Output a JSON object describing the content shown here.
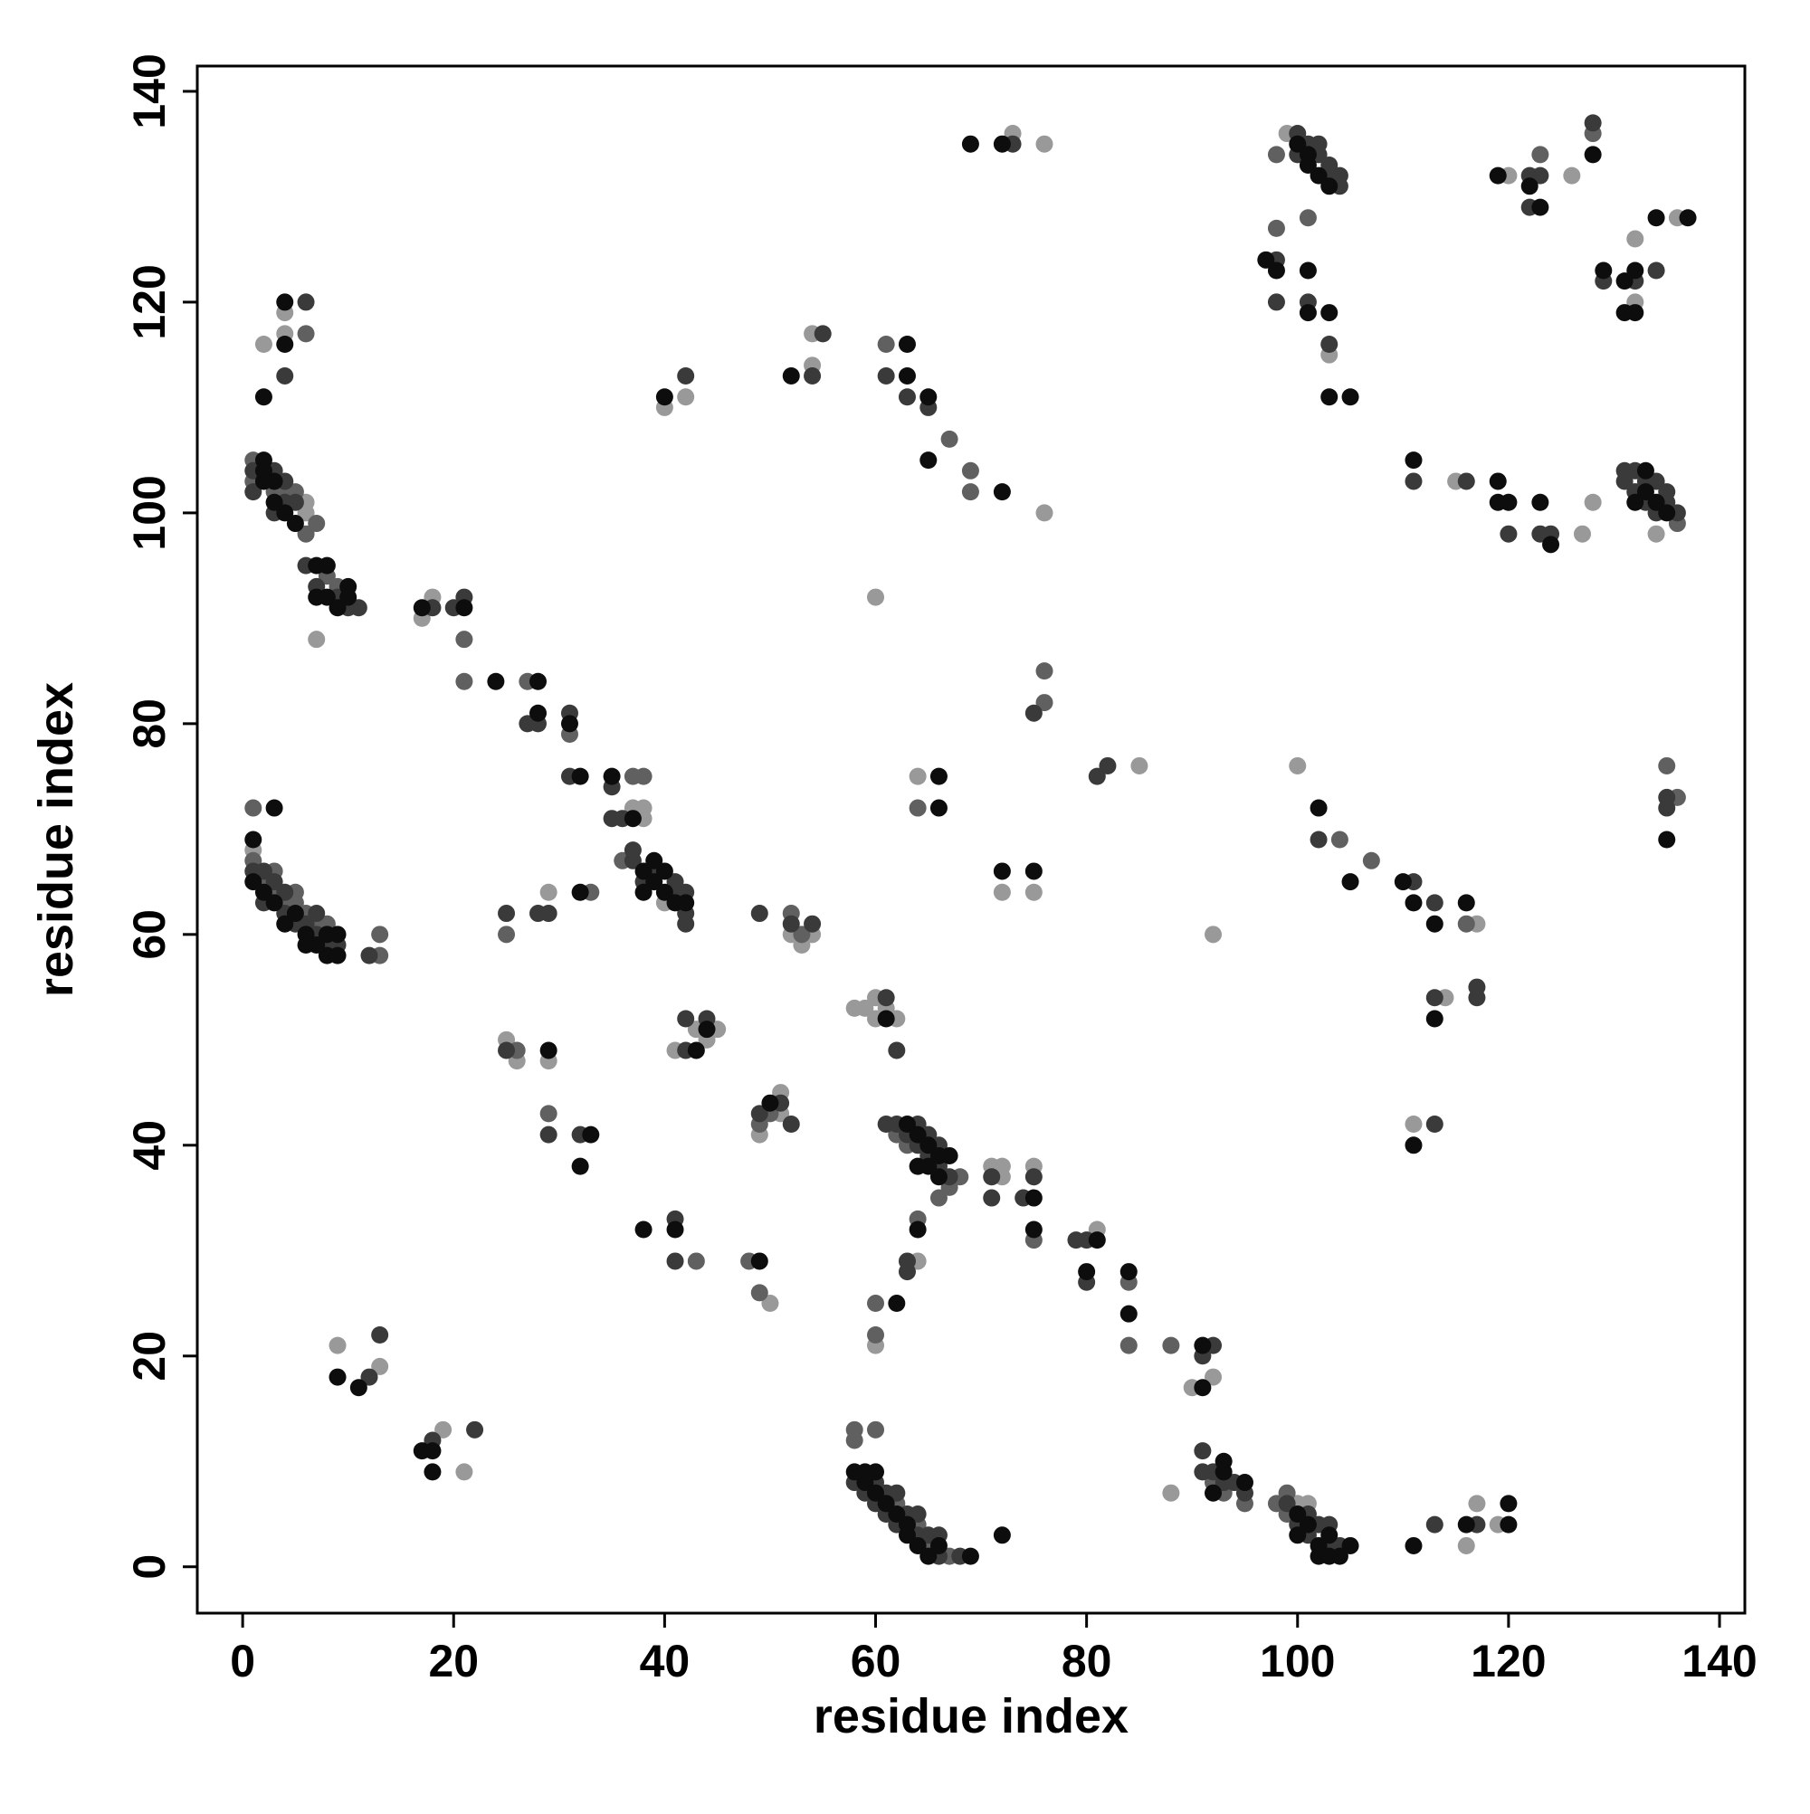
{
  "chart_data": {
    "type": "scatter",
    "x_label": "residue index",
    "y_label": "residue index",
    "xlim": [
      -4.3,
      142.4
    ],
    "ylim": [
      -4.4,
      142.4
    ],
    "xticks": [
      0,
      20,
      40,
      60,
      80,
      100,
      120,
      140
    ],
    "yticks": [
      0,
      20,
      40,
      60,
      80,
      100,
      120,
      140
    ],
    "series": [
      {
        "color": "#0d0d0d",
        "x": [
          2,
          2,
          2,
          3,
          3,
          4,
          5,
          7,
          8,
          8,
          9,
          10,
          10,
          7,
          4,
          4,
          2,
          1,
          1,
          2,
          3,
          3,
          4,
          5,
          6,
          6,
          7,
          8,
          8,
          9,
          9,
          9,
          11,
          18,
          18,
          17,
          17,
          21,
          24,
          28,
          28,
          31,
          32,
          35,
          37,
          38,
          38,
          39,
          39,
          40,
          40,
          41,
          42,
          32,
          32,
          38,
          41,
          33,
          29,
          40,
          43,
          44,
          49,
          50,
          52,
          61,
          63,
          63,
          65,
          65,
          72,
          69,
          72,
          66,
          66,
          72,
          75,
          75,
          75,
          63,
          64,
          64,
          65,
          65,
          66,
          66,
          67,
          64,
          62,
          80,
          81,
          84,
          84,
          91,
          91,
          93,
          58,
          59,
          59,
          60,
          60,
          61,
          62,
          63,
          63,
          64,
          65,
          66,
          69,
          72,
          92,
          93,
          95,
          100,
          100,
          101,
          102,
          102,
          103,
          103,
          104,
          105,
          111,
          116,
          120,
          120,
          102,
          105,
          110,
          111,
          113,
          116,
          113,
          111,
          97,
          98,
          101,
          101,
          103,
          103,
          105,
          100,
          101,
          101,
          102,
          103,
          111,
          119,
          120,
          123,
          124,
          119,
          119,
          122,
          123,
          128,
          129,
          131,
          131,
          132,
          132,
          134,
          137,
          132,
          133,
          133,
          134,
          135,
          135
        ],
        "y": [
          105,
          104,
          103,
          103,
          101,
          100,
          99,
          95,
          95,
          92,
          91,
          93,
          92,
          92,
          120,
          116,
          111,
          69,
          65,
          64,
          72,
          63,
          61,
          62,
          60,
          59,
          59,
          60,
          58,
          60,
          58,
          18,
          17,
          11,
          9,
          11,
          91,
          91,
          84,
          84,
          81,
          80,
          75,
          75,
          71,
          66,
          64,
          67,
          65,
          66,
          64,
          63,
          63,
          64,
          38,
          32,
          32,
          41,
          49,
          111,
          49,
          51,
          29,
          44,
          113,
          52,
          116,
          113,
          111,
          105,
          102,
          135,
          135,
          72,
          75,
          66,
          66,
          32,
          35,
          42,
          41,
          38,
          40,
          38,
          39,
          37,
          39,
          32,
          25,
          28,
          31,
          28,
          24,
          17,
          21,
          10,
          9,
          9,
          8,
          9,
          7,
          6,
          5,
          4,
          3,
          2,
          1,
          2,
          1,
          3,
          7,
          9,
          8,
          5,
          3,
          4,
          2,
          1,
          3,
          1,
          1,
          2,
          2,
          4,
          4,
          6,
          72,
          65,
          65,
          63,
          61,
          63,
          52,
          40,
          124,
          123,
          123,
          119,
          119,
          111,
          111,
          135,
          134,
          133,
          132,
          131,
          105,
          103,
          101,
          101,
          97,
          101,
          132,
          131,
          129,
          134,
          123,
          122,
          119,
          123,
          119,
          128,
          128,
          101,
          104,
          102,
          101,
          100,
          69
        ]
      },
      {
        "color": "#3a3a3a",
        "x": [
          1,
          1,
          3,
          3,
          4,
          4,
          5,
          6,
          9,
          10,
          11,
          7,
          6,
          4,
          1,
          2,
          2,
          3,
          4,
          4,
          5,
          6,
          7,
          7,
          8,
          9,
          12,
          12,
          13,
          18,
          22,
          18,
          20,
          21,
          27,
          28,
          31,
          31,
          35,
          35,
          36,
          37,
          37,
          38,
          39,
          41,
          42,
          42,
          42,
          41,
          25,
          28,
          29,
          25,
          29,
          32,
          41,
          41,
          42,
          42,
          42,
          44,
          49,
          49,
          51,
          52,
          52,
          54,
          54,
          55,
          61,
          63,
          65,
          62,
          73,
          61,
          75,
          81,
          82,
          61,
          62,
          63,
          64,
          64,
          65,
          65,
          66,
          66,
          67,
          71,
          71,
          74,
          75,
          63,
          63,
          80,
          79,
          80,
          92,
          91,
          58,
          59,
          60,
          60,
          61,
          61,
          62,
          62,
          63,
          64,
          64,
          65,
          66,
          66,
          68,
          91,
          91,
          92,
          93,
          94,
          95,
          99,
          100,
          101,
          101,
          102,
          103,
          103,
          104,
          113,
          117,
          111,
          113,
          117,
          117,
          113,
          113,
          102,
          98,
          98,
          101,
          103,
          100,
          100,
          101,
          102,
          102,
          103,
          103,
          104,
          104,
          111,
          116,
          120,
          124,
          123,
          122,
          123,
          128,
          129,
          132,
          134,
          122,
          131,
          131,
          132,
          132,
          133,
          133,
          134,
          134,
          135,
          135,
          136,
          135,
          135
        ],
        "y": [
          104,
          102,
          104,
          100,
          103,
          101,
          101,
          95,
          92,
          91,
          91,
          93,
          120,
          113,
          66,
          66,
          63,
          65,
          64,
          62,
          61,
          61,
          62,
          60,
          59,
          59,
          58,
          18,
          22,
          12,
          13,
          91,
          91,
          92,
          80,
          80,
          81,
          75,
          74,
          71,
          71,
          67,
          68,
          65,
          66,
          64,
          64,
          62,
          61,
          65,
          62,
          62,
          62,
          49,
          41,
          41,
          33,
          29,
          113,
          52,
          49,
          52,
          43,
          62,
          44,
          42,
          61,
          61,
          113,
          117,
          113,
          111,
          110,
          49,
          135,
          54,
          81,
          75,
          76,
          42,
          42,
          41,
          42,
          40,
          41,
          39,
          40,
          38,
          37,
          37,
          35,
          35,
          37,
          29,
          28,
          31,
          31,
          27,
          21,
          20,
          8,
          7,
          8,
          6,
          7,
          5,
          7,
          4,
          5,
          5,
          3,
          3,
          3,
          1,
          1,
          11,
          9,
          9,
          8,
          8,
          7,
          6,
          4,
          5,
          3,
          4,
          2,
          4,
          2,
          4,
          4,
          65,
          63,
          55,
          54,
          54,
          42,
          69,
          124,
          120,
          120,
          116,
          136,
          134,
          135,
          135,
          134,
          133,
          132,
          132,
          131,
          103,
          103,
          98,
          98,
          98,
          132,
          132,
          137,
          122,
          122,
          123,
          129,
          104,
          103,
          104,
          102,
          103,
          101,
          103,
          100,
          102,
          101,
          100,
          73,
          72
        ]
      },
      {
        "color": "#606060",
        "x": [
          1,
          1,
          3,
          4,
          5,
          7,
          6,
          8,
          9,
          6,
          1,
          1,
          2,
          3,
          3,
          4,
          5,
          5,
          6,
          7,
          8,
          13,
          13,
          21,
          21,
          27,
          31,
          36,
          37,
          38,
          25,
          29,
          26,
          43,
          33,
          52,
          50,
          53,
          49,
          48,
          49,
          61,
          67,
          69,
          69,
          64,
          76,
          76,
          62,
          63,
          66,
          67,
          68,
          75,
          64,
          60,
          60,
          60,
          58,
          58,
          84,
          84,
          88,
          62,
          64,
          65,
          67,
          92,
          93,
          95,
          98,
          99,
          99,
          104,
          107,
          116,
          98,
          101,
          98,
          123,
          128,
          136,
          135,
          136
        ],
        "y": [
          105,
          103,
          102,
          102,
          102,
          99,
          98,
          94,
          93,
          117,
          72,
          67,
          65,
          66,
          64,
          63,
          64,
          63,
          62,
          61,
          61,
          60,
          58,
          88,
          84,
          84,
          79,
          67,
          75,
          75,
          60,
          43,
          49,
          29,
          64,
          62,
          43,
          60,
          26,
          29,
          42,
          116,
          107,
          104,
          102,
          72,
          82,
          85,
          41,
          40,
          35,
          36,
          37,
          31,
          33,
          22,
          25,
          13,
          13,
          12,
          27,
          21,
          21,
          6,
          4,
          2,
          1,
          8,
          7,
          6,
          6,
          7,
          5,
          69,
          67,
          61,
          127,
          128,
          134,
          134,
          136,
          99,
          76,
          73
        ]
      },
      {
        "color": "#999999",
        "x": [
          6,
          6,
          7,
          4,
          4,
          2,
          1,
          9,
          13,
          19,
          21,
          17,
          18,
          29,
          37,
          38,
          38,
          40,
          25,
          26,
          29,
          41,
          40,
          42,
          43,
          44,
          45,
          49,
          50,
          51,
          51,
          52,
          53,
          54,
          54,
          54,
          58,
          59,
          60,
          60,
          61,
          62,
          60,
          76,
          73,
          76,
          64,
          72,
          75,
          71,
          72,
          72,
          75,
          64,
          60,
          81,
          85,
          88,
          90,
          92,
          100,
          101,
          116,
          117,
          119,
          92,
          100,
          111,
          114,
          117,
          99,
          103,
          115,
          127,
          128,
          120,
          126,
          132,
          132,
          136,
          134
        ],
        "y": [
          101,
          100,
          88,
          119,
          117,
          116,
          68,
          21,
          19,
          13,
          9,
          90,
          92,
          64,
          72,
          72,
          71,
          63,
          50,
          48,
          48,
          49,
          110,
          111,
          51,
          50,
          51,
          41,
          25,
          45,
          43,
          60,
          59,
          60,
          117,
          114,
          53,
          53,
          54,
          52,
          53,
          52,
          92,
          100,
          136,
          135,
          75,
          64,
          64,
          38,
          38,
          37,
          38,
          29,
          21,
          32,
          76,
          7,
          17,
          18,
          6,
          6,
          2,
          6,
          4,
          60,
          76,
          42,
          54,
          61,
          136,
          115,
          103,
          98,
          101,
          132,
          132,
          126,
          120,
          128,
          98
        ]
      }
    ]
  }
}
